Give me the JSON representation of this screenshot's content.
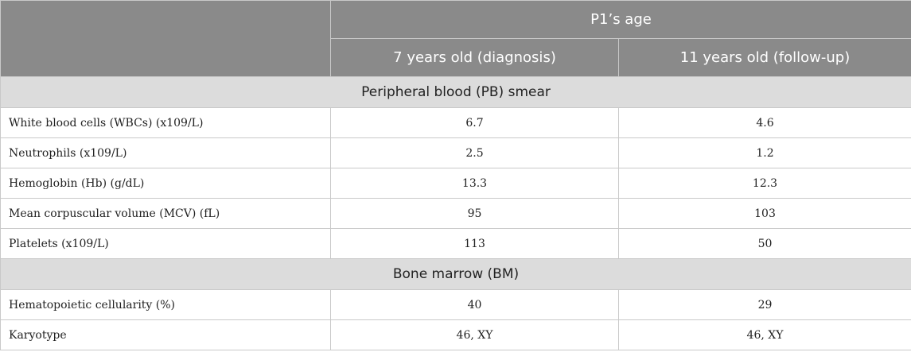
{
  "header": {
    "group_label": "P1’s age",
    "columns": [
      "7 years old (diagnosis)",
      "11 years old (follow-up)"
    ]
  },
  "sections": [
    {
      "title": "Peripheral blood (PB) smear",
      "rows": [
        {
          "label": "White blood cells (WBCs) (x109/L)",
          "values": [
            "6.7",
            "4.6"
          ]
        },
        {
          "label": "Neutrophils (x109/L)",
          "values": [
            "2.5",
            "1.2"
          ]
        },
        {
          "label": "Hemoglobin (Hb) (g/dL)",
          "values": [
            "13.3",
            "12.3"
          ]
        },
        {
          "label": "Mean corpuscular volume (MCV) (fL)",
          "values": [
            "95",
            "103"
          ]
        },
        {
          "label": "Platelets (x109/L)",
          "values": [
            "113",
            "50"
          ]
        }
      ]
    },
    {
      "title": "Bone marrow (BM)",
      "rows": [
        {
          "label": "Hematopoietic cellularity (%)",
          "values": [
            "40",
            "29"
          ]
        },
        {
          "label": "Karyotype",
          "values": [
            "46, XY",
            "46, XY"
          ]
        }
      ]
    }
  ]
}
